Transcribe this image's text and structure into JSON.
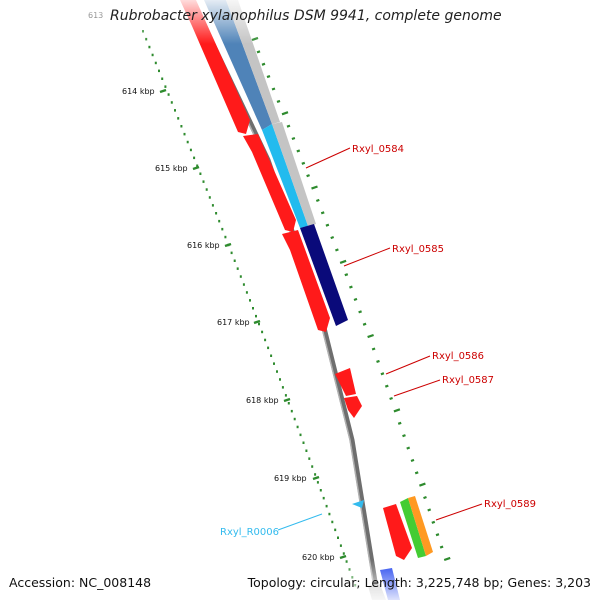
{
  "title": "Rubrobacter xylanophilus DSM 9941, complete genome",
  "footer": {
    "accession": "Accession: NC_008148",
    "topology": "Topology: circular; Length: 3,225,748 bp; Genes: 3,203"
  },
  "ticks": [
    {
      "label": "613",
      "kbp": 613
    },
    {
      "label": "614 kbp",
      "kbp": 614
    },
    {
      "label": "615 kbp",
      "kbp": 615
    },
    {
      "label": "616 kbp",
      "kbp": 616
    },
    {
      "label": "617 kbp",
      "kbp": 617
    },
    {
      "label": "618 kbp",
      "kbp": 618
    },
    {
      "label": "619 kbp",
      "kbp": 619
    },
    {
      "label": "620 kbp",
      "kbp": 620
    }
  ],
  "gene_labels": [
    {
      "text": "Rxyl_0584",
      "color": "#cc0000"
    },
    {
      "text": "Rxyl_0585",
      "color": "#cc0000"
    },
    {
      "text": "Rxyl_0586",
      "color": "#cc0000"
    },
    {
      "text": "Rxyl_0587",
      "color": "#cc0000"
    },
    {
      "text": "Rxyl_0589",
      "color": "#cc0000"
    },
    {
      "text": "Rxyl_R0006",
      "color": "#33bbee"
    }
  ],
  "colors": {
    "cds": "#ff1a1a",
    "backbone": "#888888",
    "tick_marks": "#2e8b2e",
    "steelblue": "#4f83b8",
    "skyblue": "#22bbee",
    "navy": "#0a0a7a",
    "green": "#44cc33",
    "orange": "#ff9922",
    "blue": "#2244ee",
    "gray": "#c4c4c4"
  }
}
